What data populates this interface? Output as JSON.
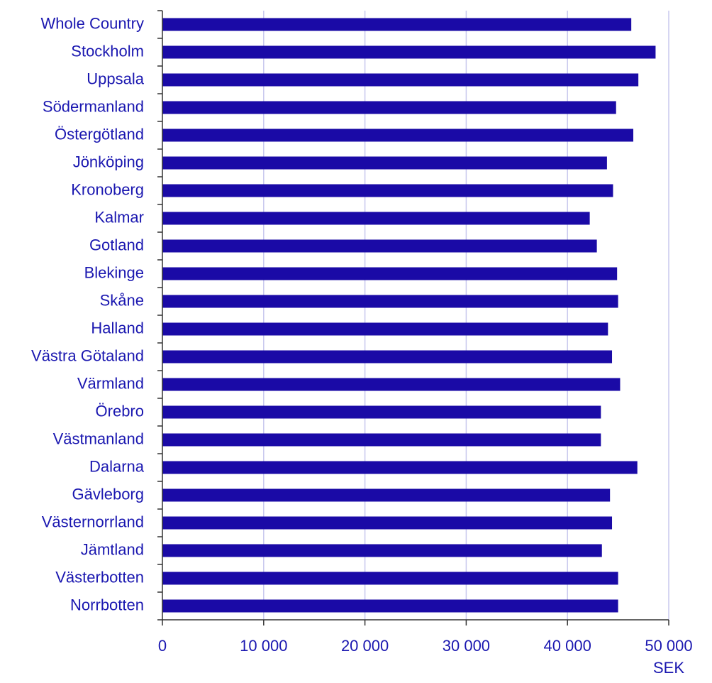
{
  "chart_data": {
    "type": "bar",
    "orientation": "horizontal",
    "categories": [
      "Whole Country",
      "Stockholm",
      "Uppsala",
      "Södermanland",
      "Östergötland",
      "Jönköping",
      "Kronoberg",
      "Kalmar",
      "Gotland",
      "Blekinge",
      "Skåne",
      "Halland",
      "Västra Götaland",
      "Värmland",
      "Örebro",
      "Västmanland",
      "Dalarna",
      "Gävleborg",
      "Västernorrland",
      "Jämtland",
      "Västerbotten",
      "Norrbotten"
    ],
    "values": [
      46300,
      48700,
      47000,
      44800,
      46500,
      43900,
      44500,
      42200,
      42900,
      44900,
      45000,
      44000,
      44400,
      45200,
      43300,
      43300,
      46900,
      44200,
      44400,
      43400,
      45000,
      45000
    ],
    "color": "#1a0aa6",
    "xlim": [
      0,
      50000
    ],
    "xticks": [
      0,
      {
        "value": 10000,
        "label": "10 000"
      },
      {
        "value": 20000,
        "label": "20 000"
      },
      {
        "value": 30000,
        "label": "30 000"
      },
      {
        "value": 40000,
        "label": "40 000"
      },
      {
        "value": 50000,
        "label": "50 000"
      }
    ],
    "x_unit_label": "SEK",
    "grid": true
  }
}
